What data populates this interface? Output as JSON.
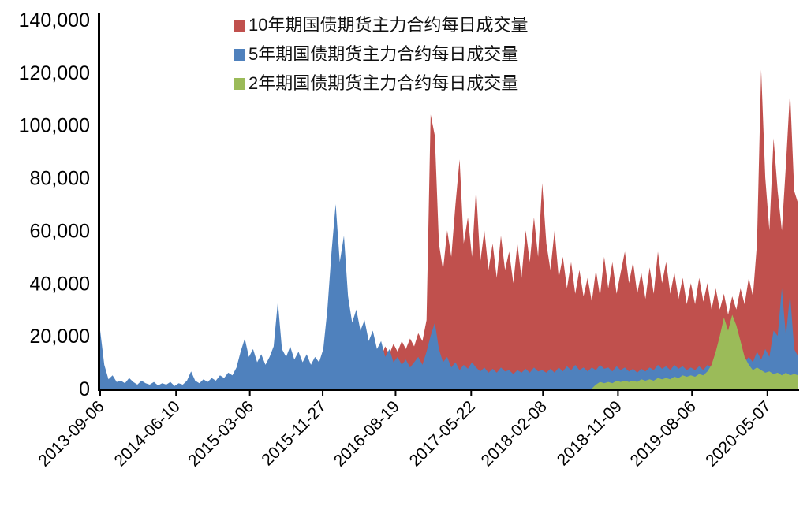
{
  "chart_data": {
    "type": "area",
    "title": "",
    "grid": false,
    "background": "#FFFFFF",
    "axis_color": "#000000",
    "legend_position": "top-center",
    "ylim": [
      0,
      140000
    ],
    "ytick_step": 20000,
    "ytick_labels": [
      "0",
      "20,000",
      "40,000",
      "60,000",
      "80,000",
      "100,000",
      "120,000",
      "140,000"
    ],
    "x_ticks": [
      {
        "label": "2013-09-06",
        "f": 0.0
      },
      {
        "label": "2014-06-10",
        "f": 0.1087
      },
      {
        "label": "2015-03-06",
        "f": 0.2143
      },
      {
        "label": "2015-11-27",
        "f": 0.3187
      },
      {
        "label": "2016-08-19",
        "f": 0.4231
      },
      {
        "label": "2017-05-22",
        "f": 0.5314
      },
      {
        "label": "2018-02-08",
        "f": 0.6342
      },
      {
        "label": "2018-11-09",
        "f": 0.7417
      },
      {
        "label": "2019-08-06",
        "f": 0.8477
      },
      {
        "label": "2020-05-07",
        "f": 0.9557
      }
    ],
    "series": [
      {
        "id": "10y",
        "name": "10年期国债期货主力合约每日成交量",
        "color": "#C0504D",
        "values": [
          0,
          0,
          0,
          0,
          0,
          0,
          0,
          0,
          0,
          0,
          0,
          0,
          0,
          0,
          0,
          0,
          0,
          0,
          0,
          0,
          0,
          0,
          0,
          0,
          0,
          0,
          0,
          0,
          0,
          0,
          0,
          0,
          0,
          0,
          0,
          0,
          0,
          1500,
          2500,
          2000,
          3000,
          2500,
          3500,
          5000,
          3000,
          3500,
          4500,
          3500,
          4000,
          3000,
          4500,
          3500,
          4000,
          3500,
          5000,
          7000,
          9000,
          12000,
          9000,
          11000,
          8000,
          10000,
          9000,
          12000,
          10000,
          14000,
          11000,
          15000,
          12000,
          16000,
          13000,
          17000,
          14000,
          18000,
          15000,
          19000,
          16000,
          21000,
          18000,
          26000,
          104000,
          96000,
          55000,
          45000,
          60000,
          50000,
          70000,
          87000,
          55000,
          65000,
          50000,
          76000,
          48000,
          60000,
          45000,
          55000,
          42000,
          58000,
          45000,
          52000,
          40000,
          55000,
          42000,
          60000,
          48000,
          65000,
          50000,
          78000,
          55000,
          45000,
          60000,
          42000,
          50000,
          38000,
          48000,
          36000,
          45000,
          35000,
          42000,
          33000,
          45000,
          35000,
          50000,
          38000,
          48000,
          36000,
          44000,
          52000,
          40000,
          48000,
          36000,
          44000,
          34000,
          46000,
          36000,
          52000,
          40000,
          48000,
          36000,
          44000,
          34000,
          42000,
          32000,
          40000,
          32000,
          42000,
          33000,
          40000,
          30000,
          38000,
          30000,
          36000,
          28000,
          35000,
          30000,
          38000,
          32000,
          42000,
          35000,
          55000,
          121000,
          80000,
          60000,
          95000,
          75000,
          60000,
          85000,
          113000,
          75000,
          70000
        ]
      },
      {
        "id": "5y",
        "name": "5年期国债期货主力合约每日成交量",
        "color": "#4F81BD",
        "values": [
          22000,
          9000,
          3500,
          5000,
          2500,
          3000,
          2000,
          4000,
          2500,
          1500,
          3000,
          2000,
          1500,
          2500,
          1200,
          2000,
          1500,
          2500,
          1000,
          2000,
          1500,
          3000,
          6500,
          3000,
          2000,
          3500,
          2500,
          4000,
          3000,
          5000,
          4000,
          6000,
          5000,
          8000,
          14000,
          19000,
          12000,
          15000,
          10000,
          13000,
          9000,
          12000,
          16000,
          33000,
          15000,
          12000,
          16000,
          11000,
          14000,
          10000,
          13000,
          9000,
          12000,
          10000,
          15000,
          30000,
          52000,
          70000,
          48000,
          58000,
          35000,
          25000,
          30000,
          22000,
          26000,
          18000,
          22000,
          15000,
          18000,
          12000,
          15000,
          10000,
          12000,
          9000,
          11000,
          8000,
          10000,
          12000,
          9000,
          14000,
          20000,
          25000,
          15000,
          10000,
          12000,
          8000,
          10000,
          7000,
          9000,
          7500,
          10000,
          8000,
          6500,
          8000,
          6000,
          7500,
          6000,
          8000,
          6500,
          7000,
          5500,
          7000,
          6000,
          7500,
          6000,
          8000,
          6500,
          7000,
          6000,
          7500,
          6000,
          8000,
          6500,
          8500,
          7000,
          9000,
          7000,
          8000,
          6500,
          8000,
          7000,
          9000,
          7500,
          8000,
          6500,
          8500,
          7000,
          8000,
          6500,
          7500,
          6000,
          7500,
          6500,
          8000,
          7000,
          9000,
          7500,
          8500,
          7000,
          9000,
          7500,
          8500,
          7000,
          8000,
          7000,
          8500,
          7000,
          9000,
          8000,
          10000,
          8500,
          11000,
          9000,
          12000,
          10000,
          13000,
          10000,
          12000,
          10000,
          14000,
          11000,
          15000,
          12000,
          22000,
          20000,
          38000,
          20000,
          36000,
          15000,
          12000
        ]
      },
      {
        "id": "2y",
        "name": "2年期国债期货主力合约每日成交量",
        "color": "#9BBB59",
        "values": [
          0,
          0,
          0,
          0,
          0,
          0,
          0,
          0,
          0,
          0,
          0,
          0,
          0,
          0,
          0,
          0,
          0,
          0,
          0,
          0,
          0,
          0,
          0,
          0,
          0,
          0,
          0,
          0,
          0,
          0,
          0,
          0,
          0,
          0,
          0,
          0,
          0,
          0,
          0,
          0,
          0,
          0,
          0,
          0,
          0,
          0,
          0,
          0,
          0,
          0,
          0,
          0,
          0,
          0,
          0,
          0,
          0,
          0,
          0,
          0,
          0,
          0,
          0,
          0,
          0,
          0,
          0,
          0,
          0,
          0,
          0,
          0,
          0,
          0,
          0,
          0,
          0,
          0,
          0,
          0,
          0,
          0,
          0,
          0,
          0,
          0,
          0,
          0,
          0,
          0,
          0,
          0,
          0,
          0,
          0,
          0,
          0,
          0,
          0,
          0,
          0,
          0,
          0,
          0,
          0,
          0,
          0,
          0,
          0,
          0,
          0,
          0,
          0,
          0,
          0,
          0,
          0,
          0,
          0,
          0,
          1500,
          2500,
          2000,
          2500,
          2000,
          3000,
          2500,
          3000,
          2500,
          3000,
          2500,
          3500,
          3000,
          3500,
          3000,
          4000,
          3500,
          4000,
          3500,
          4500,
          4000,
          5000,
          4500,
          5000,
          4500,
          5500,
          5000,
          6500,
          9000,
          14000,
          20000,
          27000,
          22000,
          28000,
          24000,
          18000,
          12000,
          9000,
          7000,
          8000,
          7000,
          6000,
          6500,
          5500,
          6000,
          5000,
          6000,
          5000,
          5500,
          5000
        ]
      }
    ]
  }
}
